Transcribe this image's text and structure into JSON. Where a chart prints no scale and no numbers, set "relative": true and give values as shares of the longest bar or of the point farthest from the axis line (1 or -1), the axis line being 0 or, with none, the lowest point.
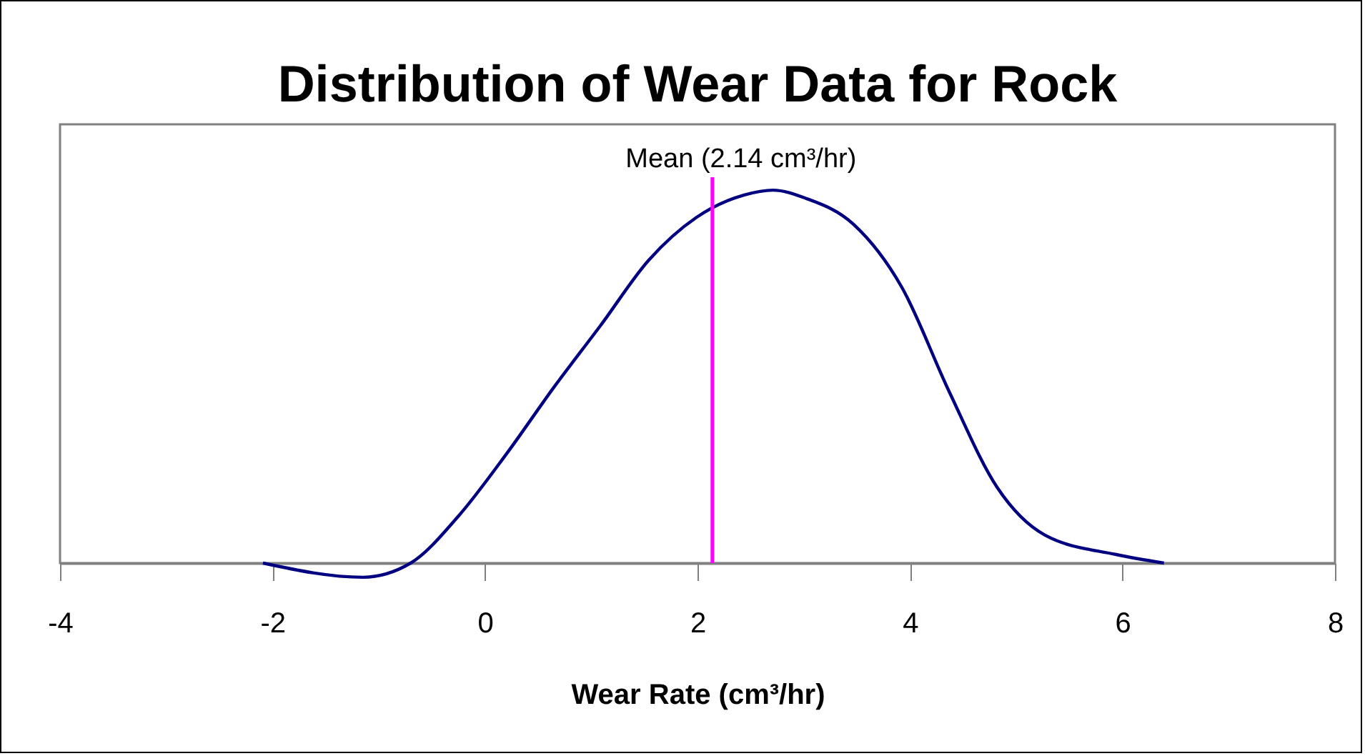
{
  "chart_data": {
    "type": "line",
    "title": "Distribution of Wear Data for Rock",
    "xlabel": "Wear Rate (cm³/hr)",
    "relative": true,
    "xlim": [
      -4,
      8
    ],
    "xticks": [
      -4,
      -2,
      0,
      2,
      4,
      6,
      8
    ],
    "grid": false,
    "marker": "none",
    "line_style": "solid",
    "x": [
      -2.09,
      -1.15,
      -0.7,
      -0.25,
      0.2,
      0.65,
      1.09,
      1.54,
      1.99,
      2.44,
      2.71,
      3.02,
      3.47,
      3.92,
      4.37,
      4.82,
      5.27,
      5.94,
      6.39
    ],
    "series": [
      {
        "color": "#000080",
        "values": [
          0,
          -0.038,
          0,
          0.126,
          0.292,
          0.472,
          0.638,
          0.812,
          0.927,
          0.987,
          1,
          0.978,
          0.908,
          0.741,
          0.459,
          0.203,
          0.075,
          0.023,
          0
        ]
      }
    ],
    "ref_lines": [
      {
        "axis": "x",
        "value": 2.14,
        "label": "Mean (2.14 cm³/hr)",
        "color": "#ff00ff"
      }
    ]
  }
}
